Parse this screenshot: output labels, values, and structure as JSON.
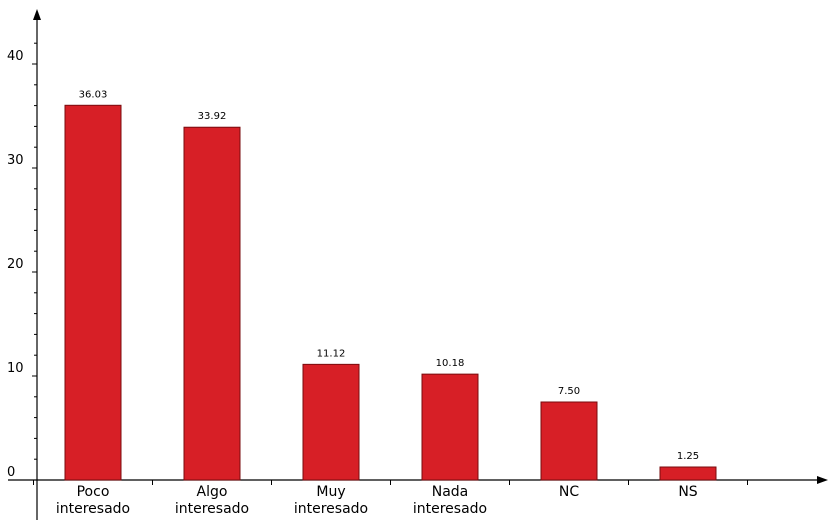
{
  "chart_data": {
    "type": "bar",
    "categories": [
      [
        "Poco",
        "interesado"
      ],
      [
        "Algo",
        "interesado"
      ],
      [
        "Muy",
        "interesado"
      ],
      [
        "Nada",
        "interesado"
      ],
      [
        "NC"
      ],
      [
        "NS"
      ]
    ],
    "values": [
      36.03,
      33.92,
      11.12,
      10.18,
      7.5,
      1.25
    ],
    "value_labels": [
      "36.03",
      "33.92",
      "11.12",
      "10.18",
      "7.50",
      "1.25"
    ],
    "yticks": [
      0,
      10,
      20,
      30,
      40
    ],
    "ylim": [
      0,
      43.5
    ],
    "grid": false,
    "bar_color": "#d71f26",
    "bar_edge_color": "#7a0b0e"
  }
}
